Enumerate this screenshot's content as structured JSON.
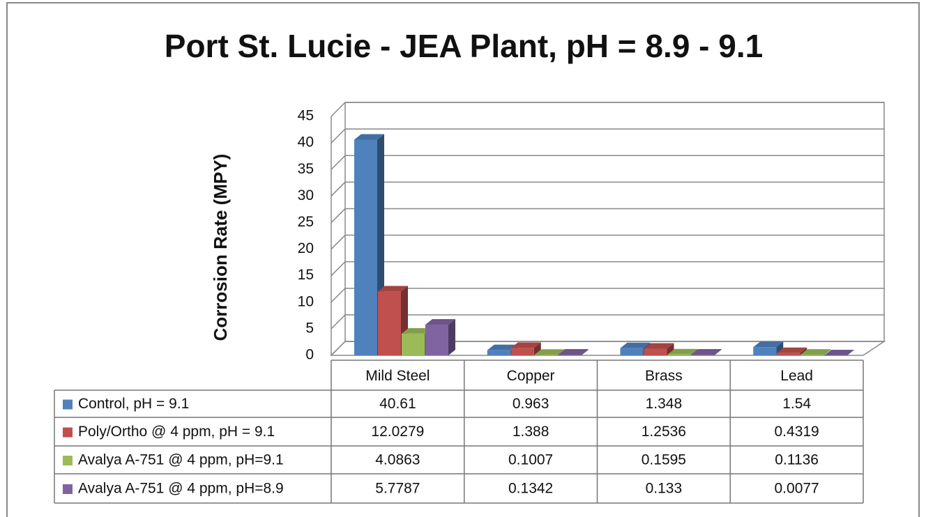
{
  "chart_data": {
    "type": "bar3d",
    "title": "Port St. Lucie - JEA Plant, pH = 8.9 - 9.1",
    "y_label": "Corrosion Rate (MPY)",
    "categories": [
      "Mild Steel",
      "Copper",
      "Brass",
      "Lead"
    ],
    "series": [
      {
        "name": "Control, pH = 9.1",
        "color": "#4f81bd",
        "values": [
          40.61,
          0.963,
          1.348,
          1.54
        ]
      },
      {
        "name": "Poly/Ortho @ 4 ppm, pH = 9.1",
        "color": "#c0504d",
        "values": [
          12.0279,
          1.388,
          1.2536,
          0.4319
        ]
      },
      {
        "name": "Avalya A-751 @ 4 ppm, pH=9.1",
        "color": "#9bbb59",
        "values": [
          4.0863,
          0.1007,
          0.1595,
          0.1136
        ]
      },
      {
        "name": "Avalya A-751 @ 4 ppm, pH=8.9",
        "color": "#8064a2",
        "values": [
          5.7787,
          0.1342,
          0.133,
          0.0077
        ]
      }
    ],
    "ylim": [
      0,
      45
    ],
    "yticks": [
      0,
      5,
      10,
      15,
      20,
      25,
      30,
      35,
      40,
      45
    ],
    "grid": true,
    "data_table": true
  }
}
